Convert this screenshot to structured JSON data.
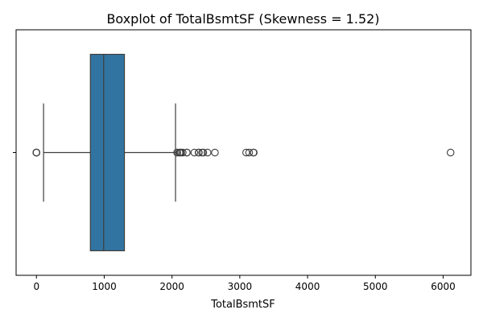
{
  "chart_data": {
    "type": "boxplot",
    "title": "Boxplot of TotalBsmtSF (Skewness = 1.52)",
    "xlabel": "TotalBsmtSF",
    "ylabel": "",
    "xlim": [
      -300,
      6410
    ],
    "xticks": [
      0,
      1000,
      2000,
      3000,
      4000,
      5000,
      6000
    ],
    "box": {
      "whisker_low": 105,
      "q1": 796,
      "median": 992,
      "q3": 1298,
      "whisker_high": 2052
    },
    "outliers": [
      0,
      0,
      0,
      0,
      2076,
      2077,
      2110,
      2121,
      2136,
      2158,
      2217,
      2220,
      2330,
      2392,
      2396,
      2444,
      2461,
      2524,
      2633,
      3094,
      3138,
      3200,
      3206,
      6110
    ],
    "colors": {
      "box_fill": "#3274a1",
      "line": "#3d3d3d",
      "axes": "#000000"
    },
    "grid": false
  }
}
